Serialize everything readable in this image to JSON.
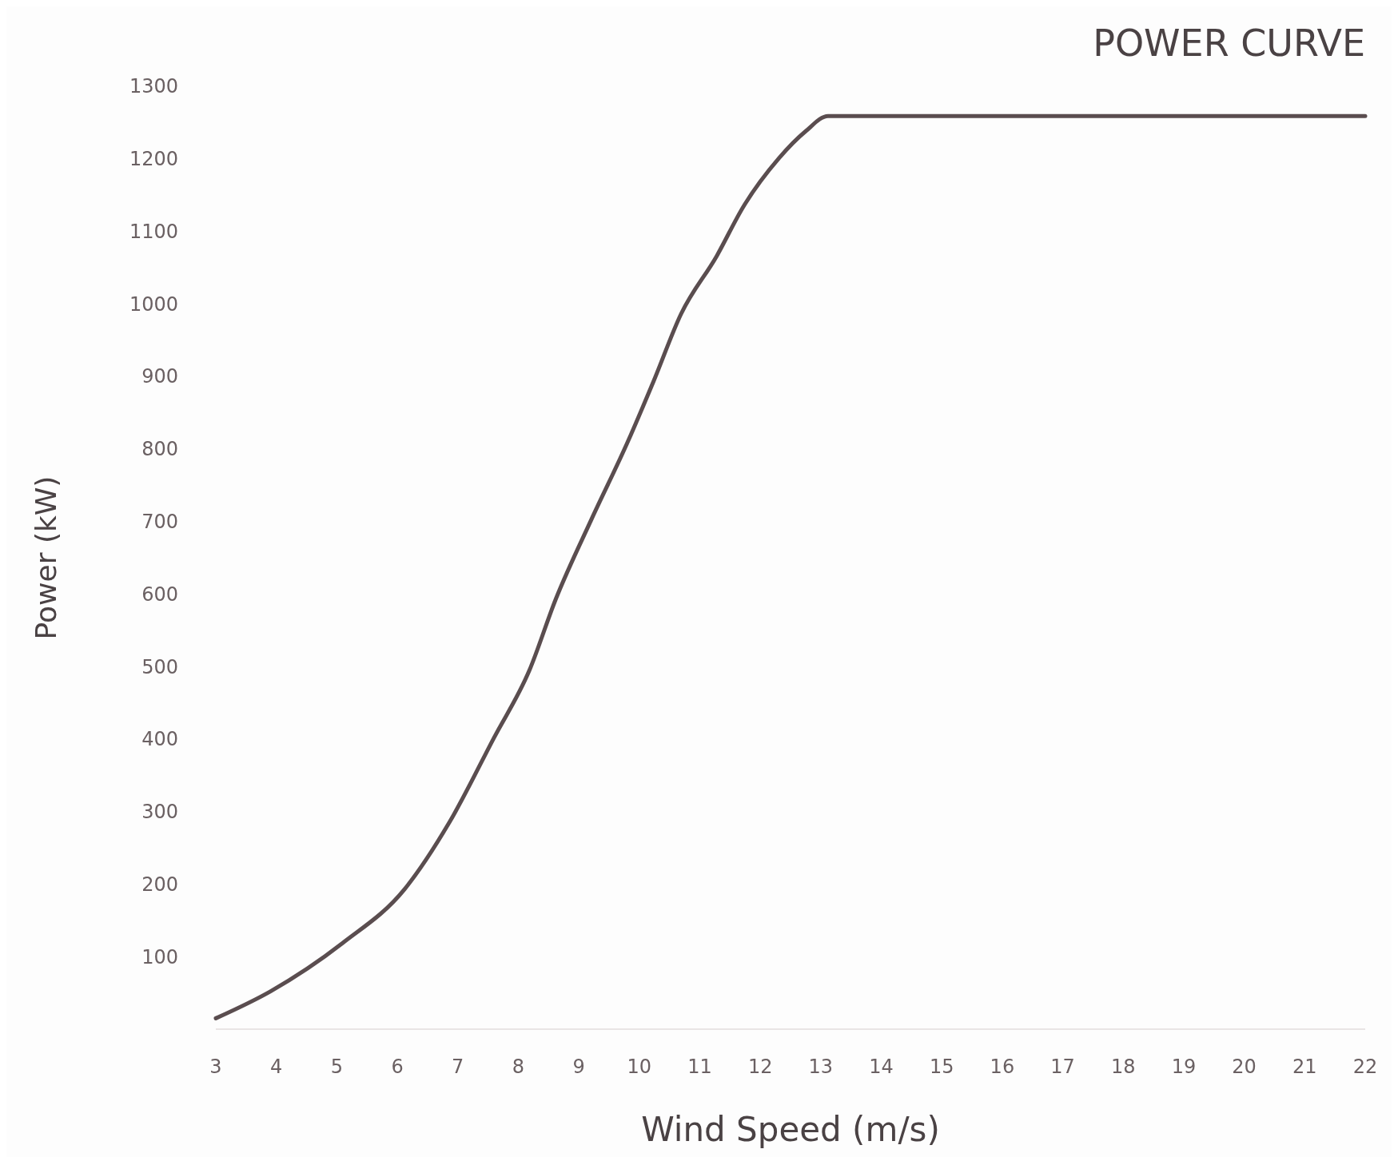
{
  "chart_data": {
    "type": "line",
    "title": "POWER CURVE",
    "xlabel": "Wind Speed (m/s)",
    "ylabel": "Power (kW)",
    "x": [
      3,
      3.9,
      5.1,
      6.12,
      6.86,
      7.6,
      8.18,
      8.62,
      9.21,
      9.8,
      10.24,
      10.69,
      11.28,
      11.72,
      12.31,
      12.75,
      13.12,
      22
    ],
    "series": [
      {
        "color": "#5a4d4f",
        "values": [
          15,
          52,
          119,
          193,
          285,
          402,
          494,
          593,
          703,
          808,
          894,
          986,
          1066,
          1134,
          1201,
          1238,
          1259,
          1259
        ]
      }
    ],
    "xlim": [
      3,
      22
    ],
    "xticks": [
      3,
      4,
      5,
      6,
      7,
      8,
      9,
      10,
      11,
      12,
      13,
      14,
      15,
      16,
      17,
      18,
      19,
      20,
      21,
      22
    ],
    "ylim": [
      0,
      1300
    ],
    "yticks": [
      100,
      200,
      300,
      400,
      500,
      600,
      700,
      800,
      900,
      1000,
      1100,
      1200,
      1300
    ],
    "grid": false,
    "marker": "none",
    "line_style": "solid"
  }
}
